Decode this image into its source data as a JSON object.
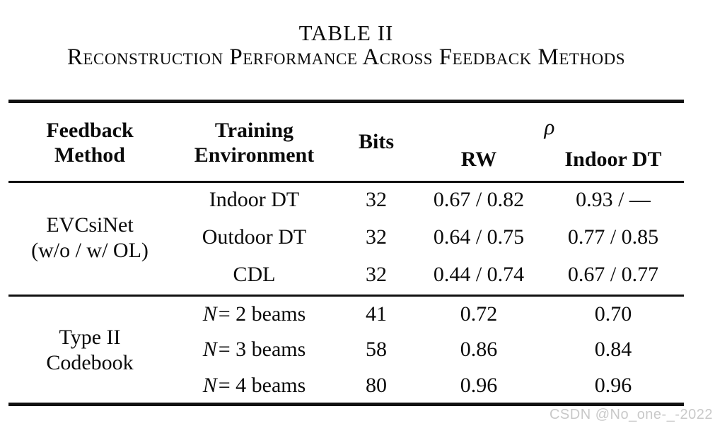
{
  "title": {
    "line1": "TABLE II",
    "line2": "Reconstruction Performance Across Feedback Methods"
  },
  "header": {
    "col1_line1": "Feedback",
    "col1_line2": "Method",
    "col2_line1": "Training",
    "col2_line2": "Environment",
    "col3": "Bits",
    "rho": "ρ",
    "sub_rw": "RW",
    "sub_indoor": "Indoor DT"
  },
  "groups": [
    {
      "label_line1": "EVCsiNet",
      "label_line2": "(w/o / w/ OL)",
      "rows": [
        {
          "env": "Indoor DT",
          "bits": "32",
          "rw": "0.67 / 0.82",
          "indoor_dt": "0.93 /  —"
        },
        {
          "env": "Outdoor DT",
          "bits": "32",
          "rw": "0.64 / 0.75",
          "indoor_dt": "0.77 / 0.85"
        },
        {
          "env": "CDL",
          "bits": "32",
          "rw": "0.44 / 0.74",
          "indoor_dt": "0.67 / 0.77"
        }
      ]
    },
    {
      "label_line1": "Type II",
      "label_line2": "Codebook",
      "rows": [
        {
          "env_var": "N",
          "env_rest": " = 2 beams",
          "bits": "41",
          "rw": "0.72",
          "indoor_dt": "0.70"
        },
        {
          "env_var": "N",
          "env_rest": " = 3 beams",
          "bits": "58",
          "rw": "0.86",
          "indoor_dt": "0.84"
        },
        {
          "env_var": "N",
          "env_rest": " = 4 beams",
          "bits": "80",
          "rw": "0.96",
          "indoor_dt": "0.96"
        }
      ]
    }
  ],
  "watermark": "CSDN @No_one-_-2022",
  "colors": {
    "text": "#0a0a0a",
    "rule": "#111111",
    "watermark": "#c9c9c9",
    "background": "#ffffff"
  }
}
